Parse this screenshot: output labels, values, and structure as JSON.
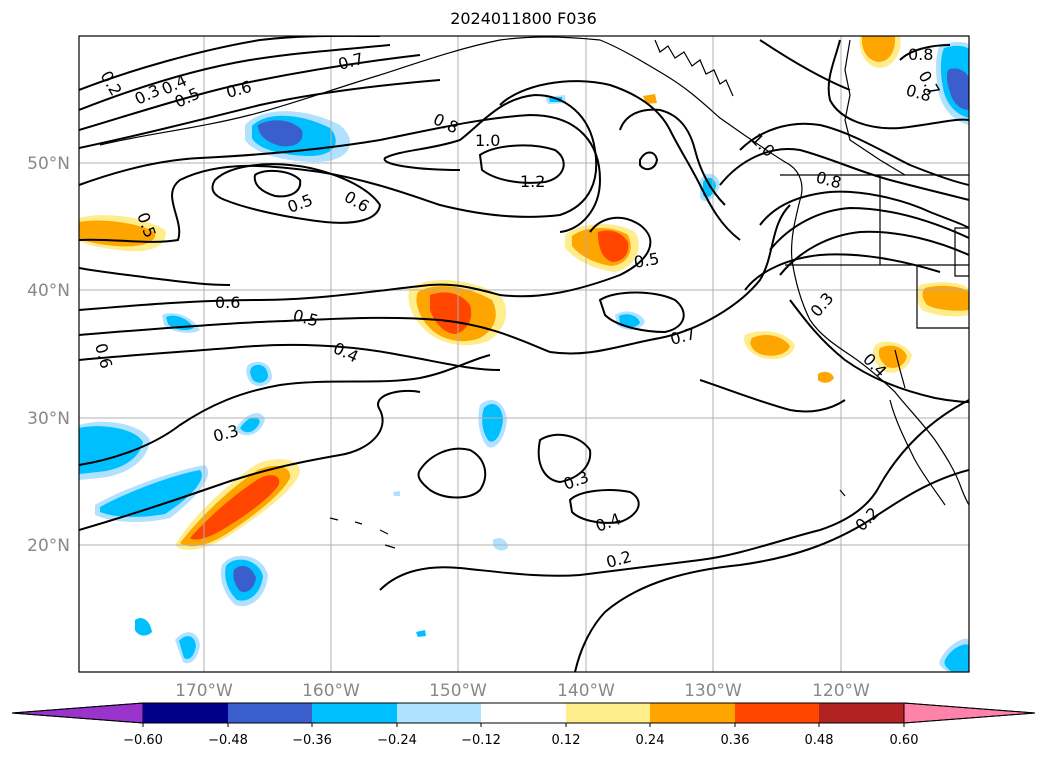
{
  "title": "2024011800 F036",
  "map": {
    "lon_range": [
      -180,
      -110
    ],
    "lat_range": [
      10,
      60
    ],
    "lat_labels": [
      "20°N",
      "30°N",
      "40°N",
      "50°N"
    ],
    "lon_labels": [
      "170°W",
      "160°W",
      "150°W",
      "140°W",
      "130°W",
      "120°W"
    ],
    "gridlines": true,
    "contour_labels": [
      "0.2",
      "0.3",
      "0.4",
      "0.5",
      "0.6",
      "0.7",
      "0.8",
      "1.0",
      "1.2",
      "0.5",
      "0.6",
      "0.5",
      "0.5",
      "0.6",
      "0.5",
      "0.4",
      "0.3",
      "0.7",
      "0.3",
      "0.4",
      "0.2",
      "0.2",
      "0.3",
      "0.4",
      "0.8",
      "0.8",
      "1.0",
      "0.7",
      "0.8",
      "0.6"
    ]
  },
  "colorbar": {
    "ticks": [
      "−0.60",
      "−0.48",
      "−0.36",
      "−0.24",
      "−0.12",
      "0.12",
      "0.24",
      "0.36",
      "0.48",
      "0.60"
    ],
    "colors": [
      "#9933cc",
      "#00008b",
      "#3a5fcd",
      "#00bfff",
      "#b0e2ff",
      "#ffffff",
      "#ffec8b",
      "#ffa500",
      "#ff4500",
      "#b22222",
      "#ff82ab"
    ]
  }
}
